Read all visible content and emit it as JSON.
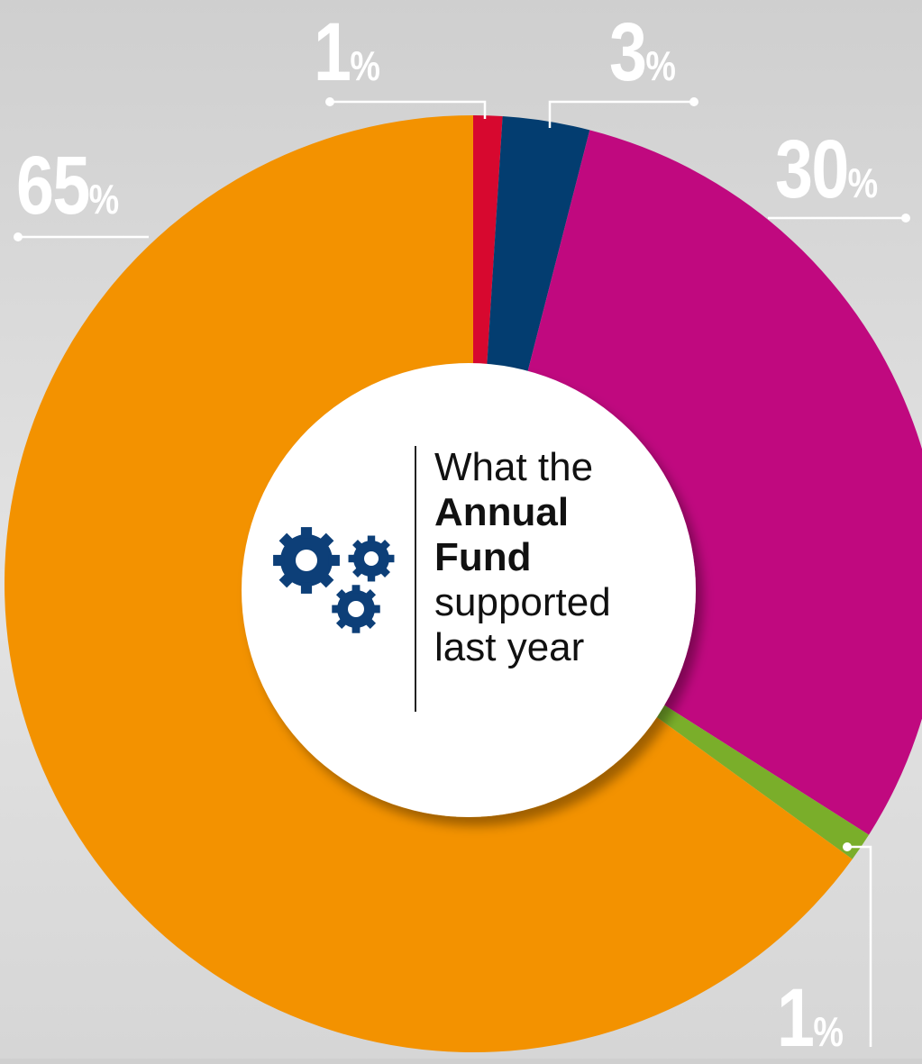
{
  "chart_data": {
    "type": "pie",
    "title": "What the Annual Fund supported last year",
    "title_parts": {
      "line1": "What the",
      "line2": "Annual",
      "line3": "Fund",
      "line4": "supported",
      "line5": "last year"
    },
    "slices": [
      {
        "value": 1,
        "label": "1",
        "unit": "%",
        "color": "#d7082f"
      },
      {
        "value": 3,
        "label": "3",
        "unit": "%",
        "color": "#033d70"
      },
      {
        "value": 30,
        "label": "30",
        "unit": "%",
        "color": "#c0097f"
      },
      {
        "value": 1,
        "label": "1",
        "unit": "%",
        "color": "#7aae2a"
      },
      {
        "value": 65,
        "label": "65",
        "unit": "%",
        "color": "#f39200"
      }
    ],
    "legend": "none",
    "icon": "gears-icon",
    "icon_color": "#0d3f78"
  }
}
